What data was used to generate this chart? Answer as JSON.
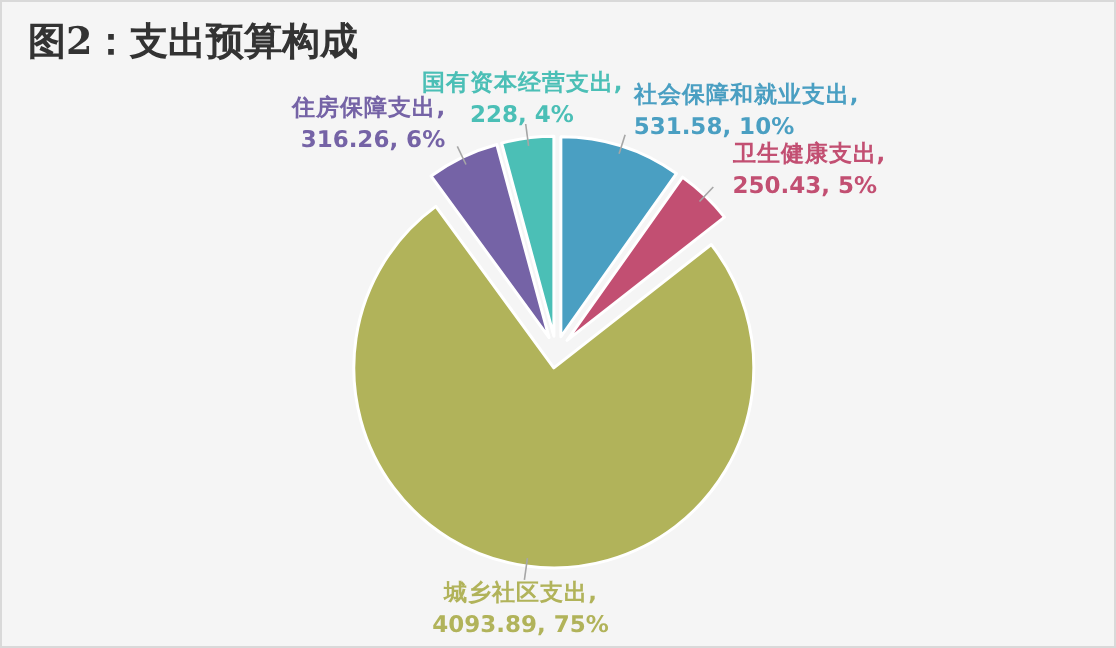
{
  "chart_data": {
    "type": "pie",
    "title": "图2：支出预算构成",
    "categories": [
      "社会保障和就业支出",
      "卫生健康支出",
      "城乡社区支出",
      "住房保障支出",
      "国有资本经营支出"
    ],
    "values": [
      531.58,
      250.43,
      4093.89,
      316.26,
      228
    ],
    "value_labels": [
      ",\n531.58, 10%",
      ",\n250.43, 5%",
      ",\n4093.89, 75%",
      ",\n316.26, 6%",
      ",\n228, 4%"
    ],
    "colors": [
      "#4a9fc2",
      "#c24f72",
      "#b1b35a",
      "#7563a6",
      "#4bbfb6"
    ]
  }
}
